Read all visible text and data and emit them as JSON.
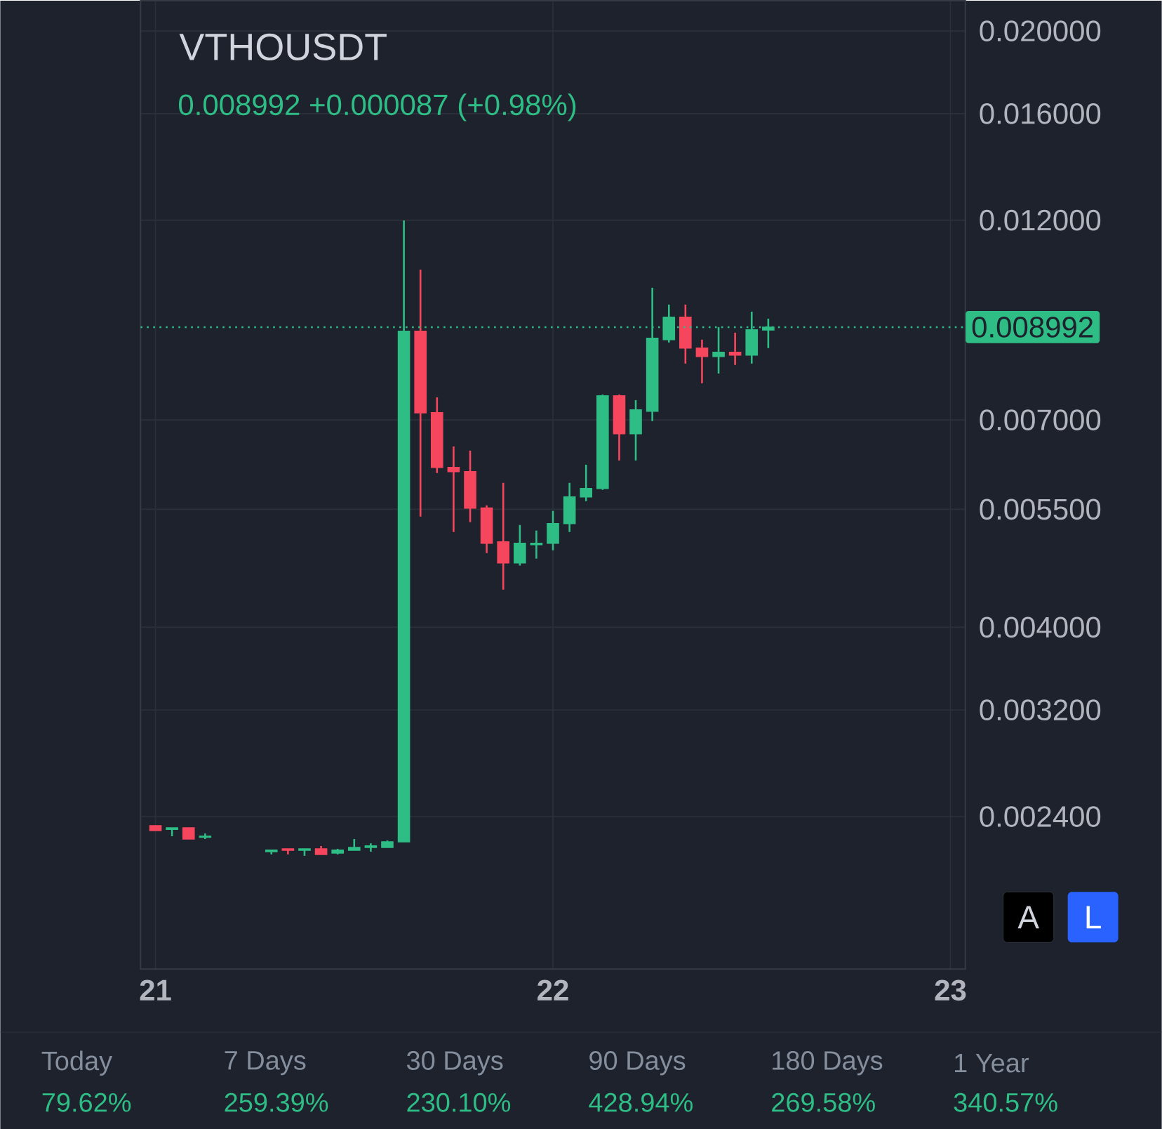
{
  "chart_data": {
    "type": "candlestick",
    "title": "VTHOUSDT",
    "subtitle": "0.008992 +0.000087 (+0.98%)",
    "x": [
      21,
      21.0417,
      21.0833,
      21.125,
      21.2917,
      21.3333,
      21.375,
      21.4167,
      21.4583,
      21.5,
      21.5417,
      21.5833,
      21.625,
      21.6667,
      21.7083,
      21.75,
      21.7917,
      21.8333,
      21.875,
      21.9167,
      21.9583,
      22,
      22.0417,
      22.0833,
      22.125,
      22.1667,
      22.2083,
      22.25,
      22.2917,
      22.3333,
      22.375,
      22.4167,
      22.4583,
      22.5,
      22.5417
    ],
    "ohlc": [
      [
        0.002342,
        0.002342,
        0.002311,
        0.002311
      ],
      [
        0.002319,
        0.002328,
        0.002276,
        0.002328
      ],
      [
        0.002328,
        0.002328,
        0.002259,
        0.002259
      ],
      [
        0.00227,
        0.002293,
        0.002259,
        0.002276
      ],
      [
        0.002183,
        0.002192,
        0.002167,
        0.002192
      ],
      [
        0.0022,
        0.0022,
        0.002167,
        0.002192
      ],
      [
        0.002192,
        0.0022,
        0.002159,
        0.0022
      ],
      [
        0.0022,
        0.002217,
        0.002167,
        0.002167
      ],
      [
        0.002175,
        0.0022,
        0.002167,
        0.002192
      ],
      [
        0.002192,
        0.002259,
        0.002192,
        0.002208
      ],
      [
        0.002208,
        0.002233,
        0.002183,
        0.002217
      ],
      [
        0.002208,
        0.00225,
        0.002208,
        0.002242
      ],
      [
        0.002242,
        0.01199,
        0.002242,
        0.008891
      ],
      [
        0.008891,
        0.010504,
        0.005393,
        0.007138
      ],
      [
        0.007138,
        0.007442,
        0.006066,
        0.006158
      ],
      [
        0.006158,
        0.006518,
        0.005173,
        0.006088
      ],
      [
        0.006088,
        0.006444,
        0.005312,
        0.005518
      ],
      [
        0.005518,
        0.005559,
        0.004887,
        0.005018
      ],
      [
        0.005037,
        0.005907,
        0.004428,
        0.00476
      ],
      [
        0.00476,
        0.005272,
        0.004725,
        0.005018
      ],
      [
        0.005,
        0.005193,
        0.004814,
        0.005018
      ],
      [
        0.005018,
        0.005476,
        0.004924,
        0.005292
      ],
      [
        0.005292,
        0.005907,
        0.005173,
        0.005687
      ],
      [
        0.005687,
        0.006203,
        0.005622,
        0.005818
      ],
      [
        0.005818,
        0.007498,
        0.005796,
        0.00747
      ],
      [
        0.00747,
        0.007498,
        0.006275,
        0.006745
      ],
      [
        0.006745,
        0.007385,
        0.006275,
        0.007191
      ],
      [
        0.007166,
        0.01,
        0.006978,
        0.008726
      ],
      [
        0.008693,
        0.009556,
        0.008627,
        0.009236
      ],
      [
        0.009236,
        0.009556,
        0.00815,
        0.008497
      ],
      [
        0.008497,
        0.008693,
        0.007729,
        0.008306
      ],
      [
        0.008306,
        0.008994,
        0.007936,
        0.0084
      ],
      [
        0.0084,
        0.008858,
        0.00812,
        0.008338
      ],
      [
        0.008338,
        0.009376,
        0.00815,
        0.008926
      ],
      [
        0.008926,
        0.0092,
        0.008497,
        0.008992
      ]
    ],
    "colors": [
      "#f6465d",
      "#2ebd85",
      "#f6465d",
      "#2ebd85",
      "#2ebd85",
      "#f6465d",
      "#2ebd85",
      "#f6465d",
      "#2ebd85",
      "#2ebd85",
      "#2ebd85",
      "#2ebd85",
      "#2ebd85",
      "#f6465d",
      "#f6465d",
      "#f6465d",
      "#f6465d",
      "#f6465d",
      "#f6465d",
      "#2ebd85",
      "#2ebd85",
      "#2ebd85",
      "#2ebd85",
      "#2ebd85",
      "#2ebd85",
      "#f6465d",
      "#2ebd85",
      "#2ebd85",
      "#2ebd85",
      "#f6465d",
      "#f6465d",
      "#2ebd85",
      "#f6465d",
      "#2ebd85",
      "#2ebd85"
    ],
    "xlim": [
      20.9625,
      23.0375
    ],
    "xticks": [
      21,
      22,
      23
    ],
    "log": true,
    "ylim": [
      0.00159,
      0.0217
    ],
    "yticks": [
      {
        "value": 0.0024,
        "label": "0.002400"
      },
      {
        "value": 0.0032,
        "label": "0.003200"
      },
      {
        "value": 0.004,
        "label": "0.004000"
      },
      {
        "value": 0.0055,
        "label": "0.005500"
      },
      {
        "value": 0.007,
        "label": "0.007000"
      },
      {
        "value": 0.012,
        "label": "0.012000"
      },
      {
        "value": 0.016,
        "label": "0.016000"
      },
      {
        "value": 0.02,
        "label": "0.020000"
      }
    ],
    "grid": true,
    "ref_lines": [
      {
        "axis": "y",
        "value": 0.008992,
        "label": "0.008992",
        "color": "#2ebd85",
        "line_style": "dotted"
      }
    ],
    "annotations": [
      "Today",
      "79.62%",
      "7 Days",
      "259.39%",
      "30 Days",
      "230.10%",
      "90 Days",
      "428.94%",
      "180 Days",
      "269.58%",
      "1 Year",
      "340.57%",
      "A",
      "L"
    ]
  }
}
